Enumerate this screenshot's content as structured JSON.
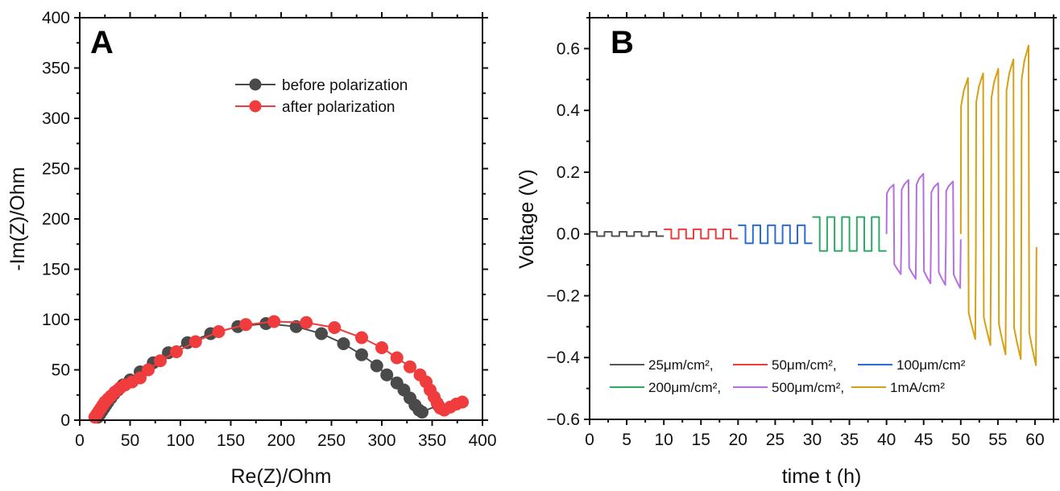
{
  "chart_data": [
    {
      "panel": "A",
      "type": "scatter",
      "title": "",
      "xlabel": "Re(Z)/Ohm",
      "ylabel": "-Im(Z)/Ohm",
      "xlim": [
        0,
        400
      ],
      "ylim": [
        0,
        400
      ],
      "xticks": [
        "0",
        "50",
        "100",
        "150",
        "200",
        "250",
        "300",
        "350",
        "400"
      ],
      "yticks": [
        "0",
        "50",
        "100",
        "150",
        "200",
        "250",
        "300",
        "350",
        "400"
      ],
      "grid": false,
      "legend_position": "top-right",
      "series": [
        {
          "name": "before polarization",
          "color": "#4a4a4a",
          "marker": "circle",
          "line": true,
          "x": [
            18,
            20,
            22,
            24,
            26,
            28,
            31,
            34,
            38,
            43,
            50,
            60,
            73,
            88,
            107,
            130,
            157,
            185,
            215,
            240,
            262,
            280,
            295,
            305,
            315,
            322,
            328,
            333,
            337,
            340,
            356
          ],
          "y": [
            3,
            6,
            9,
            12,
            15,
            18,
            22,
            26,
            30,
            35,
            40,
            48,
            57,
            67,
            77,
            86,
            93,
            96,
            93,
            86,
            76,
            65,
            54,
            45,
            37,
            30,
            22,
            15,
            10,
            8,
            15
          ]
        },
        {
          "name": "after polarization",
          "color": "#f03c3c",
          "marker": "circle",
          "line": true,
          "x": [
            15,
            17,
            19,
            21,
            23,
            25,
            28,
            31,
            35,
            40,
            45,
            52,
            60,
            68,
            80,
            96,
            115,
            138,
            165,
            193,
            225,
            253,
            280,
            300,
            315,
            328,
            338,
            344,
            348,
            352,
            355,
            358,
            362,
            368,
            374,
            380
          ],
          "y": [
            3,
            6,
            9,
            12,
            15,
            18,
            21,
            24,
            28,
            32,
            35,
            38,
            42,
            50,
            59,
            68,
            78,
            88,
            95,
            98,
            97,
            92,
            82,
            72,
            62,
            53,
            45,
            38,
            30,
            23,
            17,
            12,
            10,
            13,
            16,
            18
          ]
        }
      ]
    },
    {
      "panel": "B",
      "type": "line",
      "title": "",
      "xlabel": "time t (h)",
      "ylabel": "Voltage (V)",
      "xlim": [
        0,
        62.5
      ],
      "ylim": [
        -0.6,
        0.7
      ],
      "xticks": [
        "0",
        "5",
        "10",
        "15",
        "20",
        "25",
        "30",
        "35",
        "40",
        "45",
        "50",
        "55",
        "60"
      ],
      "yticks": [
        "−0.6",
        "−0.4",
        "−0.2",
        "0.0",
        "0.2",
        "0.4",
        "0.6"
      ],
      "grid": false,
      "legend_position": "bottom",
      "series": [
        {
          "name": "25μm/cm²,",
          "color": "#555555",
          "t_start": 0,
          "t_end": 10,
          "cycles": 5,
          "v_high": 0.007,
          "v_low": -0.007
        },
        {
          "name": "50μm/cm²,",
          "color": "#ee3b3b",
          "t_start": 10,
          "t_end": 20,
          "cycles": 5,
          "v_high": 0.015,
          "v_low": -0.015
        },
        {
          "name": "100μm/cm²",
          "color": "#2a6bd6",
          "t_start": 20,
          "t_end": 30,
          "cycles": 5,
          "v_high": 0.028,
          "v_low": -0.03
        },
        {
          "name": "200μm/cm²,",
          "color": "#2eaa66",
          "t_start": 30,
          "t_end": 40,
          "cycles": 5,
          "v_high": 0.055,
          "v_low": -0.055
        },
        {
          "name": "500μm/cm²,",
          "color": "#b56fe0",
          "t_start": 40,
          "t_end": 50,
          "cycles": 5,
          "peaks_high": [
            0.16,
            0.175,
            0.195,
            0.165,
            0.17
          ],
          "peaks_low": [
            -0.13,
            -0.145,
            -0.16,
            -0.165,
            -0.175
          ]
        },
        {
          "name": "1mA/cm²",
          "color": "#d4a015",
          "t_start": 50,
          "t_end": 60.2,
          "cycles": 5,
          "peaks_high": [
            0.505,
            0.52,
            0.535,
            0.565,
            0.61
          ],
          "peaks_low": [
            -0.34,
            -0.36,
            -0.39,
            -0.405,
            -0.425
          ]
        }
      ]
    }
  ],
  "panels": {
    "a_letter": "A",
    "b_letter": "B"
  }
}
